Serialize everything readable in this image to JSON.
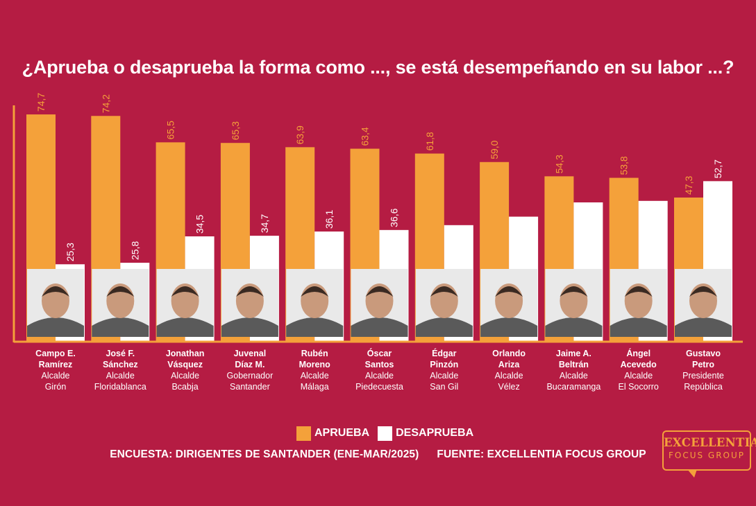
{
  "title": "¿Aprueba o desaprueba la forma como ..., se está desempeñando en su labor ...?",
  "colors": {
    "background": "#b51c43",
    "aprueba": "#f4a13a",
    "desaprueba": "#ffffff",
    "axis": "#f4a13a"
  },
  "legend": {
    "aprueba": "APRUEBA",
    "desaprueba": "DESAPRUEBA"
  },
  "source": {
    "survey": "ENCUESTA: DIRIGENTES DE SANTANDER (ENE-MAR/2025)",
    "fuente": "FUENTE: EXCELLENTIA FOCUS GROUP"
  },
  "logo": {
    "line1": "EXCELLENTIA",
    "line2": "FOCUS GROUP"
  },
  "people": [
    {
      "name1": "Campo E.",
      "name2": "Ramírez",
      "role": "Alcalde",
      "place": "Girón"
    },
    {
      "name1": "José F.",
      "name2": "Sánchez",
      "role": "Alcalde",
      "place": "Floridablanca"
    },
    {
      "name1": "Jonathan",
      "name2": "Vásquez",
      "role": "Alcalde",
      "place": "Bcabja"
    },
    {
      "name1": "Juvenal",
      "name2": "Díaz M.",
      "role": "Gobernador",
      "place": "Santander"
    },
    {
      "name1": "Rubén",
      "name2": "Moreno",
      "role": "Alcalde",
      "place": "Málaga"
    },
    {
      "name1": "Óscar",
      "name2": "Santos",
      "role": "Alcalde",
      "place": "Piedecuesta"
    },
    {
      "name1": "Édgar",
      "name2": "Pinzón",
      "role": "Alcalde",
      "place": "San Gil"
    },
    {
      "name1": "Orlando",
      "name2": "Ariza",
      "role": "Alcalde",
      "place": "Vélez"
    },
    {
      "name1": "Jaime A.",
      "name2": "Beltrán",
      "role": "Alcalde",
      "place": "Bucaramanga"
    },
    {
      "name1": "Ángel",
      "name2": "Acevedo",
      "role": "Alcalde",
      "place": "El Socorro"
    },
    {
      "name1": "Gustavo",
      "name2": "Petro",
      "role": "Presidente",
      "place": "República"
    }
  ],
  "chart_data": {
    "type": "bar",
    "categories": [
      "Campo E. Ramírez",
      "José F. Sánchez",
      "Jonathan Vásquez",
      "Juvenal Díaz M.",
      "Rubén Moreno",
      "Óscar Santos",
      "Édgar Pinzón",
      "Orlando Ariza",
      "Jaime A. Beltrán",
      "Ángel Acevedo",
      "Gustavo Petro"
    ],
    "series": [
      {
        "name": "APRUEBA",
        "values": [
          74.7,
          74.2,
          65.5,
          65.3,
          63.9,
          63.4,
          61.8,
          59.0,
          54.3,
          53.8,
          47.3
        ],
        "labels": [
          "74,7",
          "74,2",
          "65,5",
          "65,3",
          "63,9",
          "63,4",
          "61,8",
          "59,0",
          "54,3",
          "53,8",
          "47,3"
        ]
      },
      {
        "name": "DESAPRUEBA",
        "values": [
          25.3,
          25.8,
          34.5,
          34.7,
          36.1,
          36.6,
          38.2,
          41.0,
          45.7,
          46.2,
          52.7
        ],
        "labels": [
          "25,3",
          "25,8",
          "34,5",
          "34,7",
          "36,1",
          "36,6",
          "",
          "",
          "",
          "",
          "52,7"
        ]
      }
    ],
    "ylim": [
      0,
      85
    ],
    "grid": false,
    "legend_position": "bottom"
  }
}
